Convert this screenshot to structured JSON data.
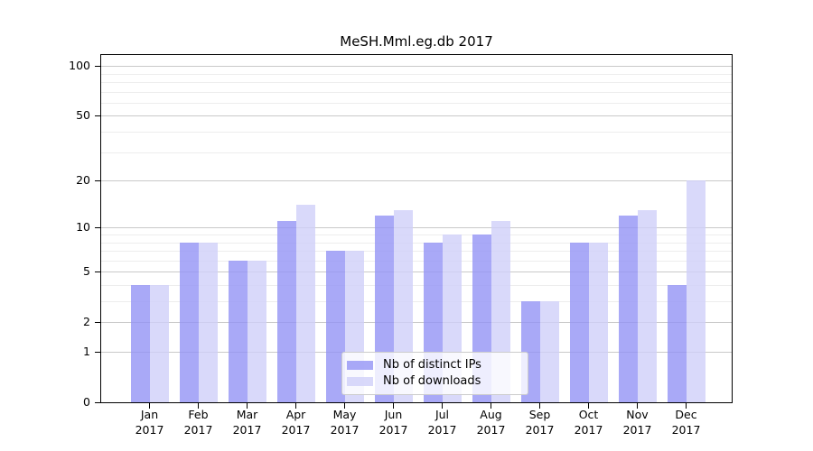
{
  "chart_data": {
    "type": "bar",
    "title": "MeSH.Mml.eg.db 2017",
    "categories": [
      "Jan 2017",
      "Feb 2017",
      "Mar 2017",
      "Apr 2017",
      "May 2017",
      "Jun 2017",
      "Jul 2017",
      "Aug 2017",
      "Sep 2017",
      "Oct 2017",
      "Nov 2017",
      "Dec 2017"
    ],
    "series": [
      {
        "name": "Nb of distinct IPs",
        "color": "#9494f5cc",
        "values": [
          4,
          8,
          6,
          11,
          7,
          12,
          8,
          9,
          3,
          8,
          12,
          4
        ]
      },
      {
        "name": "Nb of downloads",
        "color": "#d0d0f9cc",
        "values": [
          4,
          8,
          6,
          14,
          7,
          13,
          9,
          11,
          3,
          8,
          13,
          20
        ]
      }
    ],
    "xlabel": "",
    "ylabel": "",
    "yscale": "log1p",
    "ylim": [
      0,
      116.5
    ],
    "yticks": [
      0,
      1,
      2,
      5,
      10,
      20,
      50,
      100
    ],
    "minor_yticks": [
      3,
      4,
      6,
      7,
      8,
      9,
      30,
      40,
      60,
      70,
      80,
      90
    ],
    "grid": true,
    "legend_position": "lower center"
  },
  "colors": {
    "bar_distinct_ips_rendered": "#a9a9f7",
    "bar_downloads_rendered": "#d9d9fa",
    "grid_major": "#c9c9c9",
    "grid_minor": "#ededed",
    "axis": "#000000",
    "legend_border": "#cccccc",
    "legend_background": "rgba(255,255,255,0.8)",
    "background": "#ffffff"
  }
}
